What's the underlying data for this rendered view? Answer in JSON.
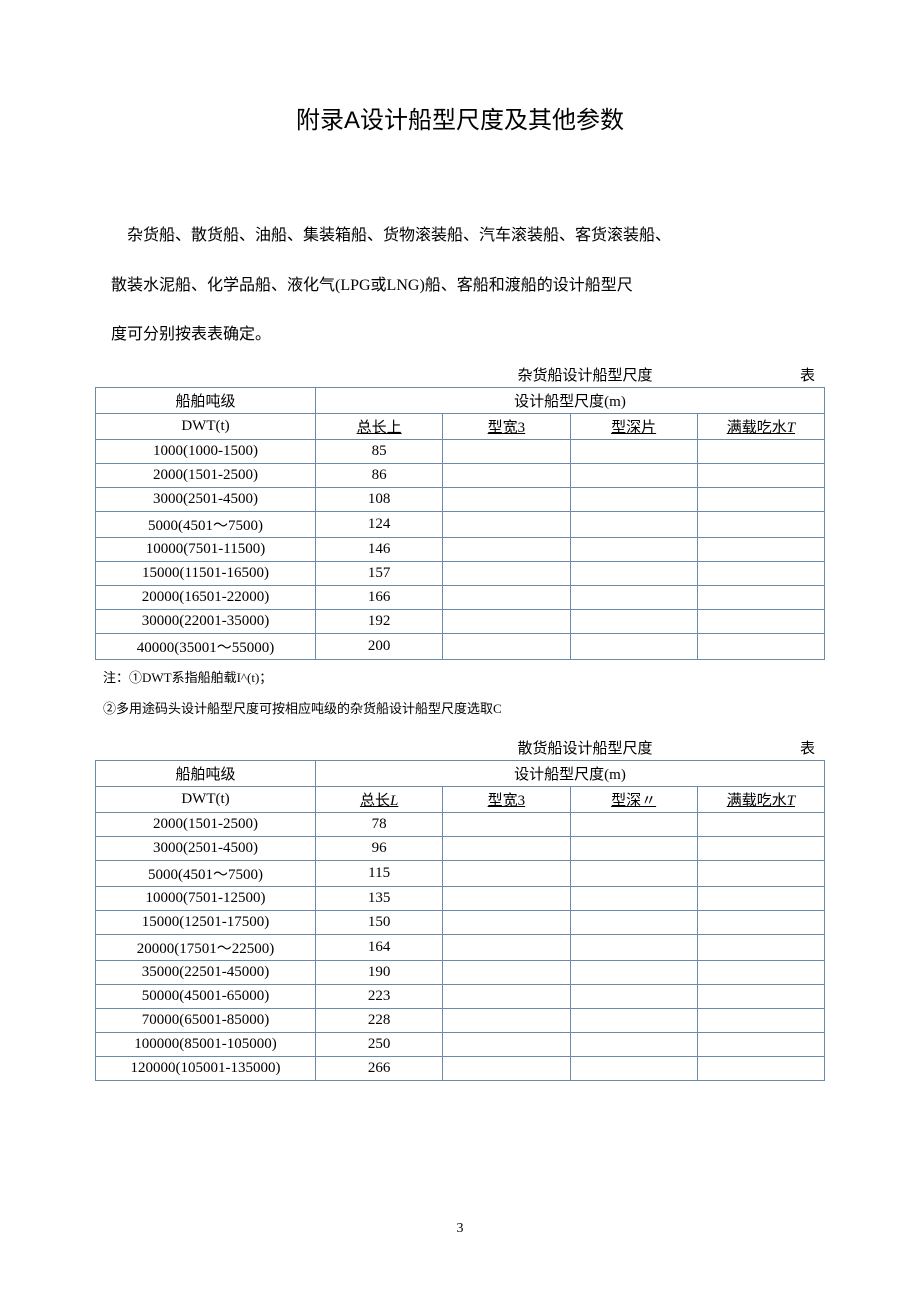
{
  "title": "附录A设计船型尺度及其他参数",
  "paragraph1": "杂货船、散货船、油船、集装箱船、货物滚装船、汽车滚装船、客货滚装船、",
  "paragraph2": "散装水泥船、化学品船、液化气(LPG或LNG)船、客船和渡船的设计船型尺",
  "paragraph3": "度可分别按表表确定。",
  "table1": {
    "caption": "杂货船设计船型尺度",
    "caption_tag": "表",
    "header_row1_col1": "船舶吨级",
    "header_row1_col2": "设计船型尺度(m)",
    "header_row2_col1": "DWT(t)",
    "header_row2_col2": "总长上",
    "header_row2_col3": "型宽3",
    "header_row2_col4": "型深片",
    "header_row2_col5": "满载吃水T",
    "rows": [
      {
        "dwt": "1000(1000-1500)",
        "len": "85",
        "b": "",
        "d": "",
        "t": ""
      },
      {
        "dwt": "2000(1501-2500)",
        "len": "86",
        "b": "",
        "d": "",
        "t": ""
      },
      {
        "dwt": "3000(2501-4500)",
        "len": "108",
        "b": "",
        "d": "",
        "t": ""
      },
      {
        "dwt": "5000(4501～7500)",
        "len": "124",
        "b": "",
        "d": "",
        "t": ""
      },
      {
        "dwt": "10000(7501-11500)",
        "len": "146",
        "b": "",
        "d": "",
        "t": ""
      },
      {
        "dwt": "15000(11501-16500)",
        "len": "157",
        "b": "",
        "d": "",
        "t": ""
      },
      {
        "dwt": "20000(16501-22000)",
        "len": "166",
        "b": "",
        "d": "",
        "t": ""
      },
      {
        "dwt": "30000(22001-35000)",
        "len": "192",
        "b": "",
        "d": "",
        "t": ""
      },
      {
        "dwt": "40000(35001〜55000)",
        "len": "200",
        "b": "",
        "d": "",
        "t": ""
      }
    ]
  },
  "note1": "注：①DWT系指船舶载I^(t)；",
  "note2": "②多用途码头设计船型尺度可按相应吨级的杂货船设计船型尺度选取C",
  "table2": {
    "caption": "散货船设计船型尺度",
    "caption_tag": "表",
    "header_row1_col1": "船舶吨级",
    "header_row1_col2": "设计船型尺度(m)",
    "header_row2_col1": "DWT(t)",
    "header_row2_col2": "总长L",
    "header_row2_col3": "型宽3",
    "header_row2_col4": "型深〃",
    "header_row2_col5": "满载吃水T",
    "rows": [
      {
        "dwt": "2000(1501-2500)",
        "len": "78",
        "b": "",
        "d": "",
        "t": ""
      },
      {
        "dwt": "3000(2501-4500)",
        "len": "96",
        "b": "",
        "d": "",
        "t": ""
      },
      {
        "dwt": "5000(4501～7500)",
        "len": "115",
        "b": "",
        "d": "",
        "t": ""
      },
      {
        "dwt": "10000(7501-12500)",
        "len": "135",
        "b": "",
        "d": "",
        "t": ""
      },
      {
        "dwt": "15000(12501-17500)",
        "len": "150",
        "b": "",
        "d": "",
        "t": ""
      },
      {
        "dwt": "20000(17501〜22500)",
        "len": "164",
        "b": "",
        "d": "",
        "t": ""
      },
      {
        "dwt": "35000(22501-45000)",
        "len": "190",
        "b": "",
        "d": "",
        "t": ""
      },
      {
        "dwt": "50000(45001-65000)",
        "len": "223",
        "b": "",
        "d": "",
        "t": ""
      },
      {
        "dwt": "70000(65001-85000)",
        "len": "228",
        "b": "",
        "d": "",
        "t": ""
      },
      {
        "dwt": "100000(85001-105000)",
        "len": "250",
        "b": "",
        "d": "",
        "t": ""
      },
      {
        "dwt": "120000(105001-135000)",
        "len": "266",
        "b": "",
        "d": "",
        "t": ""
      }
    ]
  },
  "page_number": "3",
  "colors": {
    "border": "#6b8aa8",
    "text": "#000000",
    "background": "#ffffff"
  }
}
